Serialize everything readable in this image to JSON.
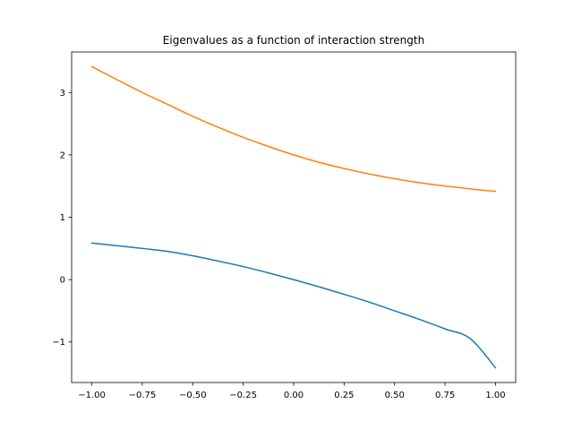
{
  "chart_data": {
    "type": "line",
    "title": "Eigenvalues as a function of interaction strength",
    "xlabel": "",
    "ylabel": "",
    "xlim": [
      -1.1,
      1.1
    ],
    "ylim": [
      -1.65,
      3.65
    ],
    "x_ticks": [
      -1.0,
      -0.75,
      -0.5,
      -0.25,
      0.0,
      0.25,
      0.5,
      0.75,
      1.0
    ],
    "x_tick_labels": [
      "−1.00",
      "−0.75",
      "−0.50",
      "−0.25",
      "0.00",
      "0.25",
      "0.50",
      "0.75",
      "1.00"
    ],
    "y_ticks": [
      -1,
      0,
      1,
      2,
      3
    ],
    "y_tick_labels": [
      "−1",
      "0",
      "1",
      "2",
      "3"
    ],
    "grid": false,
    "legend": "none",
    "x": [
      -1.0,
      -0.875,
      -0.75,
      -0.625,
      -0.5,
      -0.375,
      -0.25,
      -0.125,
      0.0,
      0.125,
      0.25,
      0.375,
      0.5,
      0.625,
      0.75,
      0.875,
      1.0
    ],
    "series": [
      {
        "color": "#1f77b4",
        "values": [
          0.586,
          0.544,
          0.5,
          0.452,
          0.382,
          0.298,
          0.209,
          0.108,
          0.0,
          -0.115,
          -0.236,
          -0.362,
          -0.5,
          -0.64,
          -0.79,
          -0.946,
          -1.414
        ]
      },
      {
        "color": "#ff7f0e",
        "values": [
          3.414,
          3.205,
          3.0,
          2.81,
          2.618,
          2.444,
          2.281,
          2.135,
          2.0,
          1.881,
          1.781,
          1.693,
          1.618,
          1.553,
          1.5,
          1.454,
          1.414
        ]
      }
    ]
  }
}
